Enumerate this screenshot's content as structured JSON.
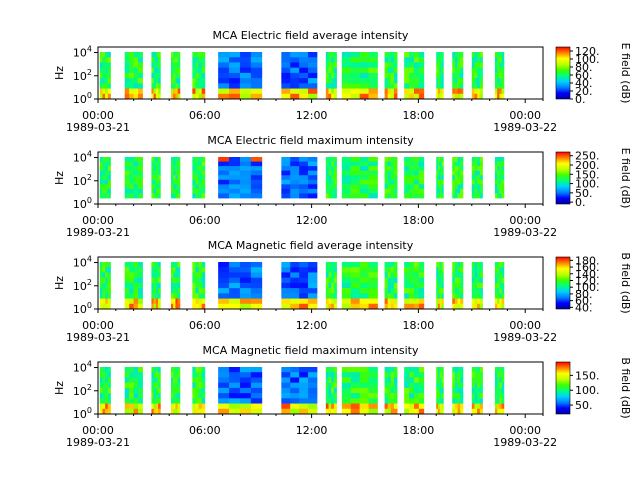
{
  "chart_data": [
    {
      "type": "heatmap",
      "title": "MCA  Electric field average intensity",
      "ylabel": "Hz",
      "y_scale": "log",
      "ylim": [
        1,
        30000
      ],
      "y_ticks": [
        {
          "value": 1,
          "base": "10",
          "exp": "0"
        },
        {
          "value": 100,
          "base": "10",
          "exp": "2"
        },
        {
          "value": 10000,
          "base": "10",
          "exp": "4"
        }
      ],
      "x_ticks": [
        "00:00",
        "06:00",
        "12:00",
        "18:00",
        "00:00"
      ],
      "x_dates": [
        "1989-03-21",
        "1989-03-22"
      ],
      "xlim": [
        "1989-03-21T00:00",
        "1989-03-22T01:00"
      ],
      "colorbar": {
        "label": "E field (dB)",
        "range": [
          0,
          130
        ],
        "ticks": [
          "0.",
          "20.",
          "40.",
          "60.",
          "80.",
          "100.",
          "120."
        ]
      },
      "data_gaps": false
    },
    {
      "type": "heatmap",
      "title": "MCA  Electric field maximum intensity",
      "ylabel": "Hz",
      "y_scale": "log",
      "ylim": [
        1,
        30000
      ],
      "y_ticks": [
        {
          "value": 1,
          "base": "10",
          "exp": "0"
        },
        {
          "value": 100,
          "base": "10",
          "exp": "2"
        },
        {
          "value": 10000,
          "base": "10",
          "exp": "4"
        }
      ],
      "x_ticks": [
        "00:00",
        "06:00",
        "12:00",
        "18:00",
        "00:00"
      ],
      "x_dates": [
        "1989-03-21",
        "1989-03-22"
      ],
      "xlim": [
        "1989-03-21T00:00",
        "1989-03-22T01:00"
      ],
      "colorbar": {
        "label": "E field (dB)",
        "range": [
          -10,
          270
        ],
        "ticks": [
          "0.",
          "50.",
          "100.",
          "150.",
          "200.",
          "250."
        ]
      },
      "data_gaps": true
    },
    {
      "type": "heatmap",
      "title": "MCA  Magnetic field average intensity",
      "ylabel": "Hz",
      "y_scale": "log",
      "ylim": [
        1,
        30000
      ],
      "y_ticks": [
        {
          "value": 1,
          "base": "10",
          "exp": "0"
        },
        {
          "value": 100,
          "base": "10",
          "exp": "2"
        },
        {
          "value": 10000,
          "base": "10",
          "exp": "4"
        }
      ],
      "x_ticks": [
        "00:00",
        "06:00",
        "12:00",
        "18:00",
        "00:00"
      ],
      "x_dates": [
        "1989-03-21",
        "1989-03-22"
      ],
      "xlim": [
        "1989-03-21T00:00",
        "1989-03-22T01:00"
      ],
      "colorbar": {
        "label": "B field (dB)",
        "range": [
          35,
          190
        ],
        "ticks": [
          "40.",
          "60.",
          "80.",
          "100.",
          "120.",
          "140.",
          "160.",
          "180."
        ]
      },
      "data_gaps": false
    },
    {
      "type": "heatmap",
      "title": "MCA  Magnetic field maximum intensity",
      "ylabel": "Hz",
      "y_scale": "log",
      "ylim": [
        1,
        30000
      ],
      "y_ticks": [
        {
          "value": 1,
          "base": "10",
          "exp": "0"
        },
        {
          "value": 100,
          "base": "10",
          "exp": "2"
        },
        {
          "value": 10000,
          "base": "10",
          "exp": "4"
        }
      ],
      "x_ticks": [
        "00:00",
        "06:00",
        "12:00",
        "18:00",
        "00:00"
      ],
      "x_dates": [
        "1989-03-21",
        "1989-03-22"
      ],
      "xlim": [
        "1989-03-21T00:00",
        "1989-03-22T01:00"
      ],
      "colorbar": {
        "label": "B field (dB)",
        "range": [
          20,
          195
        ],
        "ticks": [
          "50.",
          "100.",
          "150."
        ]
      },
      "data_gaps": false
    }
  ],
  "colormap": [
    "#0000a0",
    "#0000ff",
    "#0080ff",
    "#00d0ff",
    "#00ff80",
    "#40ff00",
    "#c0ff00",
    "#ffff00",
    "#ff8000",
    "#ff0000"
  ],
  "data_segments_hours": [
    [
      0.1,
      0.7
    ],
    [
      1.5,
      2.5
    ],
    [
      3.0,
      3.5
    ],
    [
      4.1,
      4.6
    ],
    [
      5.3,
      6.0
    ],
    [
      6.75,
      9.2
    ],
    [
      10.3,
      12.3
    ],
    [
      12.8,
      13.4
    ],
    [
      13.7,
      15.7
    ],
    [
      16.1,
      16.8
    ],
    [
      17.2,
      18.3
    ],
    [
      19.0,
      19.4
    ],
    [
      19.9,
      20.5
    ],
    [
      21.0,
      21.6
    ],
    [
      22.3,
      22.8
    ]
  ]
}
